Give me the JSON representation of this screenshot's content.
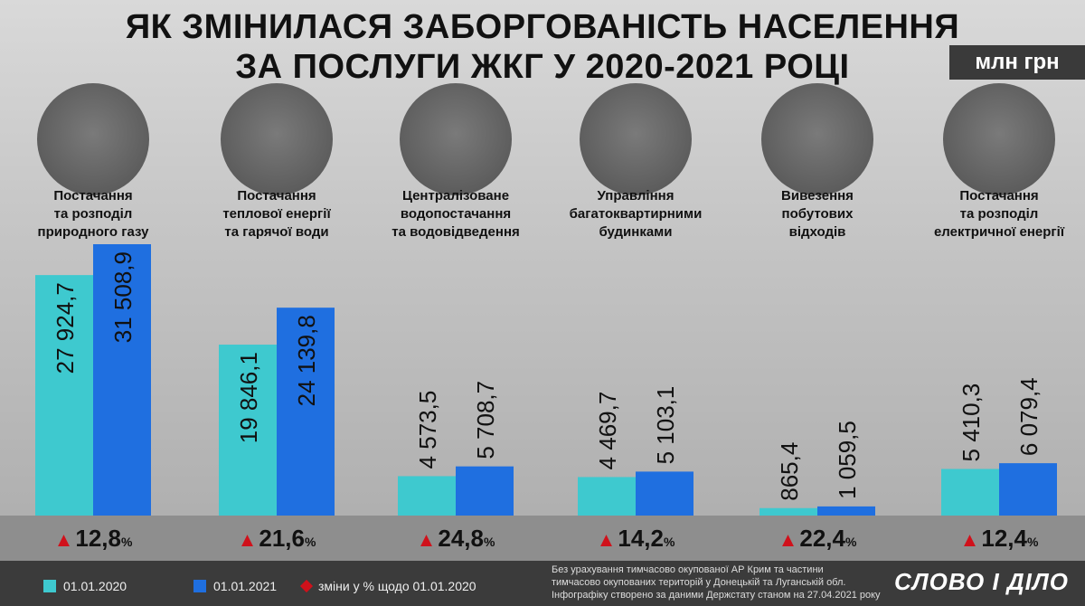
{
  "title_line1": "ЯК ЗМІНИЛАСЯ ЗАБОРГОВАНІСТЬ НАСЕЛЕННЯ",
  "title_line2": "ЗА ПОСЛУГИ ЖКГ У 2020-2021 РОЦІ",
  "unit": "млн грн",
  "colors": {
    "s2020": "#3ec9cf",
    "s2021": "#1f6fe0",
    "arrow": "#d0111b"
  },
  "chart_data": {
    "type": "bar",
    "title": "ЯК ЗМІНИЛАСЯ ЗАБОРГОВАНІСТЬ НАСЕЛЕННЯ ЗА ПОСЛУГИ ЖКГ У 2020-2021 РОЦІ",
    "ylabel": "млн грн",
    "ylim": [
      0,
      31508.9
    ],
    "categories": [
      [
        "Постачання",
        "та розподіл",
        "природного газу"
      ],
      [
        "Постачання",
        "теплової енергії",
        "та гарячої води"
      ],
      [
        "Централізоване",
        "водопостачання",
        "та водовідведення"
      ],
      [
        "Управління",
        "багатоквартирними",
        "будинками"
      ],
      [
        "Вивезення",
        "побутових",
        "відходів"
      ],
      [
        "Постачання",
        "та розподіл",
        "електричної енергії"
      ]
    ],
    "series": [
      {
        "name": "01.01.2020",
        "values": [
          27924.7,
          19846.1,
          4573.5,
          4469.7,
          865.4,
          5410.3
        ],
        "labels": [
          "27 924,7",
          "19 846,1",
          "4 573,5",
          "4 469,7",
          "865,4",
          "5 410,3"
        ]
      },
      {
        "name": "01.01.2021",
        "values": [
          31508.9,
          24139.8,
          5708.7,
          5103.1,
          1059.5,
          6079.4
        ],
        "labels": [
          "31 508,9",
          "24 139,8",
          "5 708,7",
          "5 103,1",
          "1 059,5",
          "6 079,4"
        ]
      }
    ],
    "changes": [
      "12,8",
      "21,6",
      "24,8",
      "14,2",
      "22,4",
      "12,4"
    ]
  },
  "changes_pct_suffix": "%",
  "legend": {
    "s2020": "01.01.2020",
    "s2021": "01.01.2021",
    "change": "зміни у % щодо 01.01.2020"
  },
  "note_line1": "Без урахування тимчасово окупованої АР Крим та частини",
  "note_line2": "тимчасово окупованих територій у Донецькій та Луганській обл.",
  "note_line3": "Інфографіку створено за даними Держстату станом на 27.04.2021 року",
  "logo": "СЛОВО І ДІЛО"
}
